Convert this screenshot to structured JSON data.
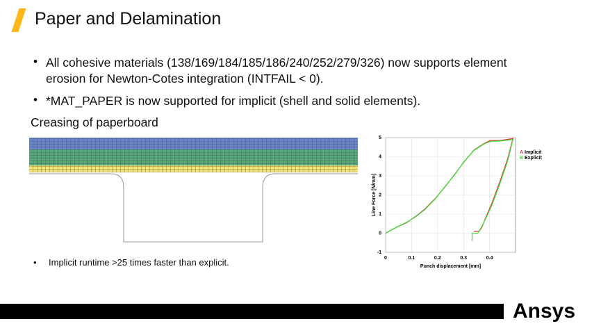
{
  "header": {
    "title": "Paper and Delamination"
  },
  "bullets": [
    "All cohesive materials (138/169/184/185/186/240/252/279/326) now supports element erosion for Newton-Cotes integration (INTFAIL < 0).",
    "*MAT_PAPER is now supported for implicit (shell and solid elements)."
  ],
  "section_label": "Creasing of paperboard",
  "note": "Implicit runtime >25 times faster than explicit.",
  "logo": "Ansys",
  "chart_data": {
    "type": "line",
    "xlabel": "Punch displacement [mm]",
    "ylabel": "Line Force [N/mm]",
    "xlim": [
      0,
      0.5
    ],
    "xticks": [
      0,
      0.1,
      0.2,
      0.3,
      0.4
    ],
    "ylim": [
      -1,
      5
    ],
    "yticks": [
      -1,
      0,
      1,
      2,
      3,
      4,
      5
    ],
    "grid": true,
    "series": [
      {
        "name": "Implicit",
        "marker": "A",
        "color": "#e03030",
        "x": [
          0,
          0.04,
          0.08,
          0.115,
          0.15,
          0.19,
          0.227,
          0.267,
          0.3,
          0.34,
          0.38,
          0.403,
          0.44,
          0.49,
          0.47,
          0.44,
          0.41,
          0.385,
          0.37,
          0.36,
          0.34
        ],
        "values": [
          0,
          0.3,
          0.55,
          0.87,
          1.25,
          1.8,
          2.4,
          3.1,
          3.7,
          4.35,
          4.7,
          4.85,
          4.85,
          4.95,
          3.9,
          2.7,
          1.6,
          0.8,
          0.3,
          0.1,
          0.1
        ]
      },
      {
        "name": "Explicit",
        "marker": "B",
        "color": "#40e040",
        "x": [
          0,
          0.04,
          0.08,
          0.115,
          0.15,
          0.19,
          0.227,
          0.267,
          0.3,
          0.34,
          0.38,
          0.403,
          0.44,
          0.49,
          0.47,
          0.44,
          0.41,
          0.385,
          0.37,
          0.355,
          0.333,
          0.333
        ],
        "values": [
          0,
          0.3,
          0.57,
          0.85,
          1.22,
          1.78,
          2.42,
          3.08,
          3.72,
          4.33,
          4.68,
          4.8,
          4.82,
          4.9,
          3.8,
          2.6,
          1.5,
          0.75,
          0.35,
          0.0,
          0.0,
          -0.4
        ]
      }
    ]
  }
}
